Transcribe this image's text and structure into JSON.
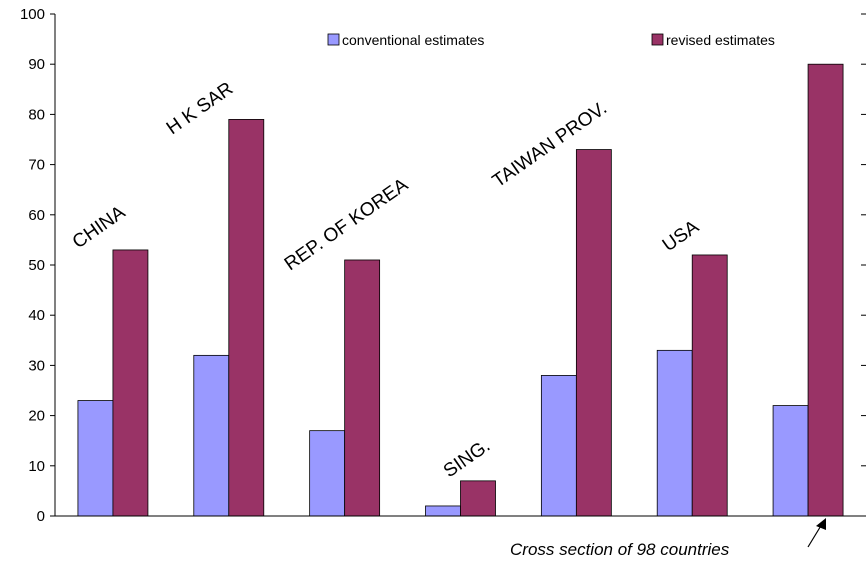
{
  "chart_data": {
    "type": "bar",
    "categories": [
      "CHINA",
      "H K SAR",
      "REP. OF KOREA",
      "SING.",
      "TAIWAN PROV.",
      "USA",
      ""
    ],
    "series": [
      {
        "name": "conventional estimates",
        "values": [
          23,
          32,
          17,
          2,
          28,
          33,
          22
        ],
        "color": "#9999ff"
      },
      {
        "name": "revised estimates",
        "values": [
          53,
          79,
          51,
          7,
          73,
          52,
          90
        ],
        "color": "#993366"
      }
    ],
    "ylim": [
      0,
      100
    ],
    "yticks": [
      0,
      10,
      20,
      30,
      40,
      50,
      60,
      70,
      80,
      90,
      100
    ],
    "legend_position": "top",
    "grid": false,
    "annotation": "Cross section of 98 countries"
  }
}
